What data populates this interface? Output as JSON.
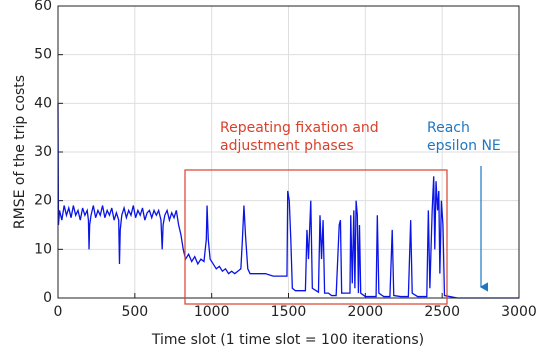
{
  "chart_data": {
    "type": "line",
    "xlabel": "Time slot (1 time slot = 100 iterations)",
    "ylabel": "RMSE of the trip costs",
    "x": [
      0,
      3,
      10,
      25,
      40,
      55,
      70,
      85,
      100,
      115,
      130,
      145,
      160,
      175,
      190,
      198,
      202,
      206,
      215,
      230,
      245,
      260,
      275,
      290,
      305,
      320,
      335,
      350,
      365,
      380,
      395,
      400,
      405,
      415,
      430,
      445,
      460,
      475,
      490,
      505,
      520,
      535,
      550,
      565,
      580,
      595,
      610,
      625,
      640,
      655,
      670,
      678,
      684,
      695,
      710,
      725,
      740,
      755,
      770,
      785,
      800,
      815,
      830,
      850,
      870,
      890,
      910,
      930,
      950,
      965,
      970,
      978,
      990,
      1010,
      1030,
      1050,
      1070,
      1090,
      1110,
      1130,
      1150,
      1170,
      1190,
      1200,
      1210,
      1220,
      1235,
      1250,
      1300,
      1350,
      1400,
      1450,
      1490,
      1495,
      1505,
      1515,
      1525,
      1545,
      1580,
      1610,
      1620,
      1630,
      1645,
      1655,
      1680,
      1695,
      1705,
      1715,
      1725,
      1735,
      1760,
      1780,
      1810,
      1830,
      1838,
      1846,
      1880,
      1900,
      1905,
      1915,
      1925,
      1932,
      1940,
      1948,
      1955,
      1962,
      1970,
      2000,
      2050,
      2070,
      2078,
      2088,
      2120,
      2160,
      2175,
      2185,
      2230,
      2280,
      2295,
      2305,
      2340,
      2380,
      2400,
      2410,
      2420,
      2435,
      2445,
      2452,
      2460,
      2470,
      2478,
      2485,
      2495,
      2505,
      2515,
      2600,
      3000
    ],
    "values": [
      40,
      15,
      18,
      16,
      19,
      17,
      18.5,
      16.5,
      19,
      17,
      18,
      16,
      18.5,
      17,
      18,
      16,
      10,
      15,
      17,
      19,
      16.5,
      18,
      17,
      19,
      16.5,
      18,
      17,
      18.5,
      16,
      17.5,
      16,
      7,
      14,
      17,
      18.5,
      16.5,
      18,
      17,
      19,
      16.5,
      18,
      17,
      18.5,
      16,
      17.5,
      18,
      16.5,
      18,
      17,
      18,
      16,
      10,
      15,
      17,
      18,
      16,
      17.5,
      16.5,
      18,
      15,
      13,
      10,
      8,
      9,
      7.5,
      8.5,
      7,
      8,
      7.5,
      12,
      19,
      12,
      8,
      7,
      6,
      6.5,
      5.5,
      6,
      5,
      5.5,
      5,
      5.5,
      6,
      12,
      19,
      13,
      6,
      5,
      5,
      5,
      4.5,
      4.5,
      4.5,
      22,
      20,
      12,
      2,
      1.5,
      1.5,
      1.5,
      14,
      8,
      20,
      2,
      1.5,
      1.2,
      17,
      8,
      16,
      1,
      1,
      0.5,
      0.5,
      15,
      16,
      1,
      1,
      1,
      17,
      3,
      18,
      2,
      20,
      17,
      1,
      15,
      1,
      0.3,
      0.3,
      0.3,
      17,
      1,
      0.3,
      0.3,
      14,
      0.5,
      0.3,
      0.3,
      16,
      1,
      0.3,
      0.3,
      0.3,
      18,
      2,
      18,
      25,
      10,
      24,
      18,
      22,
      5,
      20,
      15,
      0.5,
      0,
      0
    ],
    "color": "#0a14e6",
    "xlim": [
      0,
      3000
    ],
    "xticks": [
      0,
      500,
      1000,
      1500,
      2000,
      2500,
      3000
    ],
    "ylim": [
      0,
      60
    ],
    "yticks": [
      0,
      10,
      20,
      30,
      40,
      50,
      60
    ],
    "grid": true,
    "annotations": [
      {
        "lines": [
          "Repeating fixation and",
          "adjustment phases"
        ],
        "color": "#d9412b"
      },
      {
        "lines": [
          "Reach",
          "epsilon NE"
        ],
        "color": "#1f77c4"
      }
    ]
  }
}
